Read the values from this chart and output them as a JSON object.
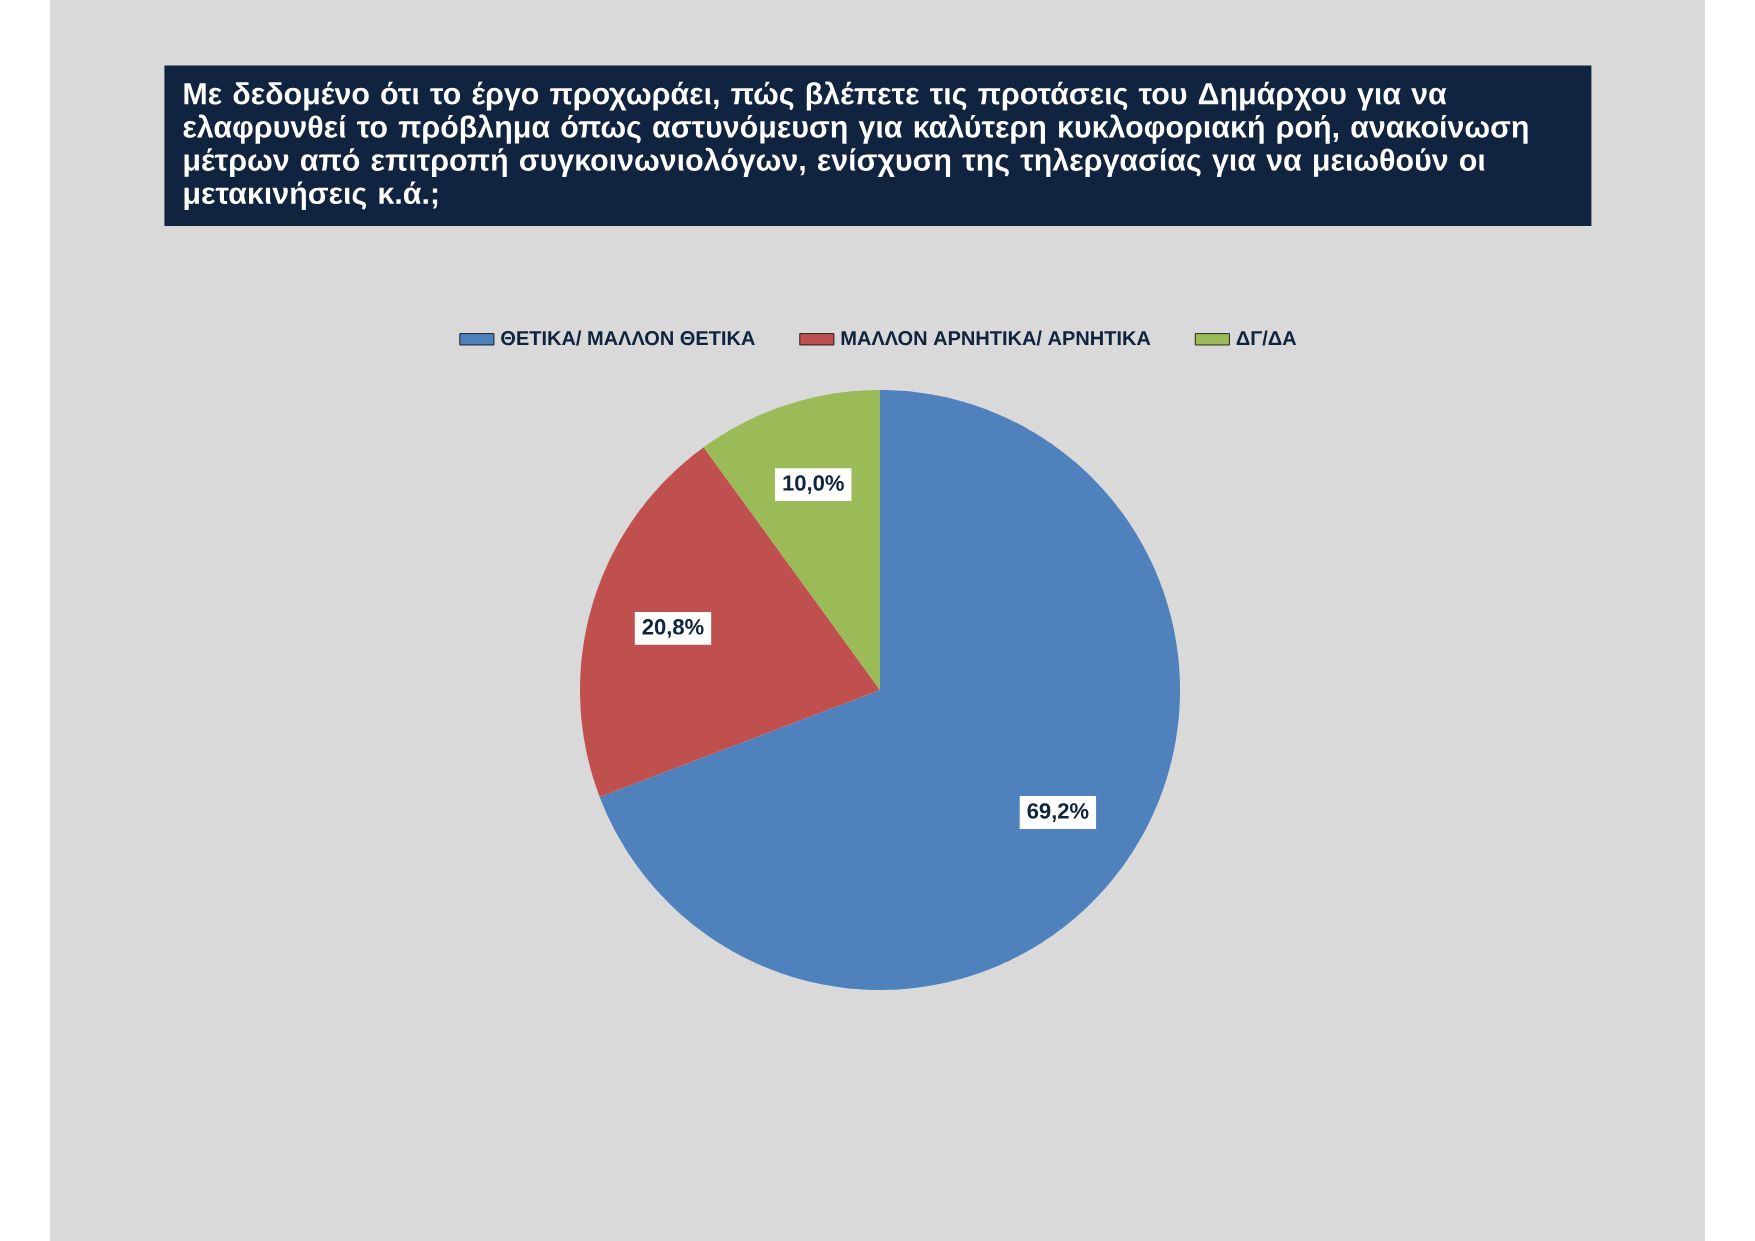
{
  "chart_data": {
    "type": "pie",
    "title": "Με δεδομένο ότι το έργο προχωράει, πώς βλέπετε τις προτάσεις του Δημάρχου για να ελαφρυνθεί το πρόβλημα όπως αστυνόμευση για καλύτερη κυκλοφοριακή ροή, ανακοίνωση μέτρων από επιτροπή συγκοινωνιολόγων, ενίσχυση της τηλεργασίας για να μειωθούν οι μετακινήσεις κ.ά.;",
    "categories": [
      "ΘΕΤΙΚΑ/ ΜΑΛΛΟΝ ΘΕΤΙΚΑ",
      "ΜΑΛΛΟΝ ΑΡΝΗΤΙΚΑ/ ΑΡΝΗΤΙΚΑ",
      "ΔΓ/ΔΑ"
    ],
    "values": [
      69.2,
      20.8,
      10.0
    ],
    "value_labels": [
      "69,2%",
      "20,8%",
      "10,0%"
    ],
    "colors": [
      "#4f81bd",
      "#c0504d",
      "#9bbb59"
    ],
    "legend": "top"
  }
}
